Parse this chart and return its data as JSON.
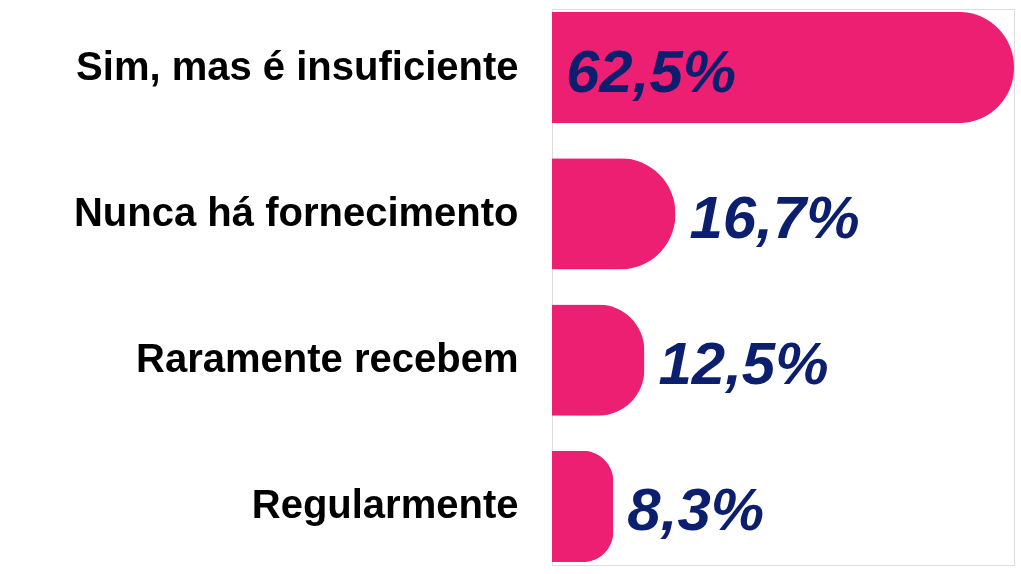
{
  "chart_data": {
    "type": "bar",
    "orientation": "horizontal",
    "categories": [
      "Sim, mas é insuficiente",
      "Nunca há fornecimento",
      "Raramente recebem",
      "Regularmente"
    ],
    "values": [
      62.5,
      16.7,
      12.5,
      8.3
    ],
    "value_labels": [
      "62,5%",
      "16,7%",
      "12,5%",
      "8,3%"
    ],
    "color": "#ec1f72"
  }
}
